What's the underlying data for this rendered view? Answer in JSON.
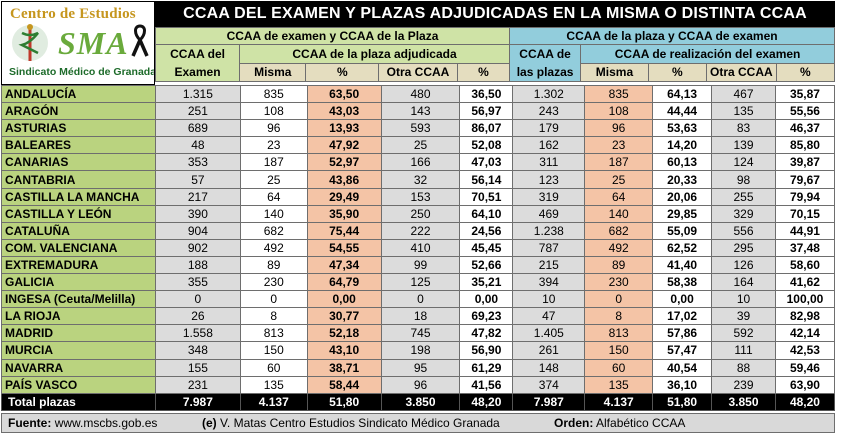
{
  "logo": {
    "top_text": "Centro de Estudios",
    "sma_text": "SMA",
    "bottom_text": "Sindicato Médico de Granada",
    "colors": {
      "gold": "#c6961e",
      "green": "#6aaa3c",
      "dark_green": "#1d6b2a"
    }
  },
  "title": "CCAA DEL EXAMEN Y PLAZAS ADJUDICADAS EN LA MISMA O DISTINTA CCAA",
  "groups": {
    "left": "CCAA de examen y CCAA de la Plaza",
    "right": "CCAA de la plaza y CCAA de examen"
  },
  "subgroups": {
    "left": "CCAA de la plaza adjudicada",
    "right": "CCAA de realización del examen"
  },
  "headers": {
    "exam": "CCAA del Examen",
    "plazas": "CCAA de las plazas",
    "misma": "Misma",
    "pct": "%",
    "otra": "Otra CCAA"
  },
  "rows": [
    {
      "name": "ANDALUCÍA",
      "exam": "1.315",
      "misma1": "835",
      "pct1": "63,50",
      "otra1": "480",
      "pct2": "36,50",
      "plazas": "1.302",
      "misma2": "835",
      "pct3": "64,13",
      "otra2": "467",
      "pct4": "35,87"
    },
    {
      "name": "ARAGÓN",
      "exam": "251",
      "misma1": "108",
      "pct1": "43,03",
      "otra1": "143",
      "pct2": "56,97",
      "plazas": "243",
      "misma2": "108",
      "pct3": "44,44",
      "otra2": "135",
      "pct4": "55,56"
    },
    {
      "name": "ASTURIAS",
      "exam": "689",
      "misma1": "96",
      "pct1": "13,93",
      "otra1": "593",
      "pct2": "86,07",
      "plazas": "179",
      "misma2": "96",
      "pct3": "53,63",
      "otra2": "83",
      "pct4": "46,37"
    },
    {
      "name": "BALEARES",
      "exam": "48",
      "misma1": "23",
      "pct1": "47,92",
      "otra1": "25",
      "pct2": "52,08",
      "plazas": "162",
      "misma2": "23",
      "pct3": "14,20",
      "otra2": "139",
      "pct4": "85,80"
    },
    {
      "name": "CANARIAS",
      "exam": "353",
      "misma1": "187",
      "pct1": "52,97",
      "otra1": "166",
      "pct2": "47,03",
      "plazas": "311",
      "misma2": "187",
      "pct3": "60,13",
      "otra2": "124",
      "pct4": "39,87"
    },
    {
      "name": "CANTABRIA",
      "exam": "57",
      "misma1": "25",
      "pct1": "43,86",
      "otra1": "32",
      "pct2": "56,14",
      "plazas": "123",
      "misma2": "25",
      "pct3": "20,33",
      "otra2": "98",
      "pct4": "79,67"
    },
    {
      "name": "CASTILLA LA MANCHA",
      "exam": "217",
      "misma1": "64",
      "pct1": "29,49",
      "otra1": "153",
      "pct2": "70,51",
      "plazas": "319",
      "misma2": "64",
      "pct3": "20,06",
      "otra2": "255",
      "pct4": "79,94"
    },
    {
      "name": "CASTILLA Y LEÓN",
      "exam": "390",
      "misma1": "140",
      "pct1": "35,90",
      "otra1": "250",
      "pct2": "64,10",
      "plazas": "469",
      "misma2": "140",
      "pct3": "29,85",
      "otra2": "329",
      "pct4": "70,15"
    },
    {
      "name": "CATALUÑA",
      "exam": "904",
      "misma1": "682",
      "pct1": "75,44",
      "otra1": "222",
      "pct2": "24,56",
      "plazas": "1.238",
      "misma2": "682",
      "pct3": "55,09",
      "otra2": "556",
      "pct4": "44,91"
    },
    {
      "name": "COM. VALENCIANA",
      "exam": "902",
      "misma1": "492",
      "pct1": "54,55",
      "otra1": "410",
      "pct2": "45,45",
      "plazas": "787",
      "misma2": "492",
      "pct3": "62,52",
      "otra2": "295",
      "pct4": "37,48"
    },
    {
      "name": "EXTREMADURA",
      "exam": "188",
      "misma1": "89",
      "pct1": "47,34",
      "otra1": "99",
      "pct2": "52,66",
      "plazas": "215",
      "misma2": "89",
      "pct3": "41,40",
      "otra2": "126",
      "pct4": "58,60"
    },
    {
      "name": "GALICIA",
      "exam": "355",
      "misma1": "230",
      "pct1": "64,79",
      "otra1": "125",
      "pct2": "35,21",
      "plazas": "394",
      "misma2": "230",
      "pct3": "58,38",
      "otra2": "164",
      "pct4": "41,62"
    },
    {
      "name": "INGESA (Ceuta/Melilla)",
      "exam": "0",
      "misma1": "0",
      "pct1": "0,00",
      "otra1": "0",
      "pct2": "0,00",
      "plazas": "10",
      "misma2": "0",
      "pct3": "0,00",
      "otra2": "10",
      "pct4": "100,00"
    },
    {
      "name": "LA RIOJA",
      "exam": "26",
      "misma1": "8",
      "pct1": "30,77",
      "otra1": "18",
      "pct2": "69,23",
      "plazas": "47",
      "misma2": "8",
      "pct3": "17,02",
      "otra2": "39",
      "pct4": "82,98"
    },
    {
      "name": "MADRID",
      "exam": "1.558",
      "misma1": "813",
      "pct1": "52,18",
      "otra1": "745",
      "pct2": "47,82",
      "plazas": "1.405",
      "misma2": "813",
      "pct3": "57,86",
      "otra2": "592",
      "pct4": "42,14"
    },
    {
      "name": "MURCIA",
      "exam": "348",
      "misma1": "150",
      "pct1": "43,10",
      "otra1": "198",
      "pct2": "56,90",
      "plazas": "261",
      "misma2": "150",
      "pct3": "57,47",
      "otra2": "111",
      "pct4": "42,53"
    },
    {
      "name": "NAVARRA",
      "exam": "155",
      "misma1": "60",
      "pct1": "38,71",
      "otra1": "95",
      "pct2": "61,29",
      "plazas": "148",
      "misma2": "60",
      "pct3": "40,54",
      "otra2": "88",
      "pct4": "59,46"
    },
    {
      "name": "PAÍS VASCO",
      "exam": "231",
      "misma1": "135",
      "pct1": "58,44",
      "otra1": "96",
      "pct2": "41,56",
      "plazas": "374",
      "misma2": "135",
      "pct3": "36,10",
      "otra2": "239",
      "pct4": "63,90"
    }
  ],
  "total": {
    "name": "Total  plazas",
    "exam": "7.987",
    "misma1": "4.137",
    "pct1": "51,80",
    "otra1": "3.850",
    "pct2": "48,20",
    "plazas": "7.987",
    "misma2": "4.137",
    "pct3": "51,80",
    "otra2": "3.850",
    "pct4": "48,20"
  },
  "footer": {
    "source_label": "Fuente:",
    "source_value": "www.mscbs.gob.es",
    "credit_label": "(e)",
    "credit_value": "V. Matas Centro Estudios Sindicato Médico Granada",
    "order_label": "Orden:",
    "order_value": "Alfabético CCAA"
  }
}
